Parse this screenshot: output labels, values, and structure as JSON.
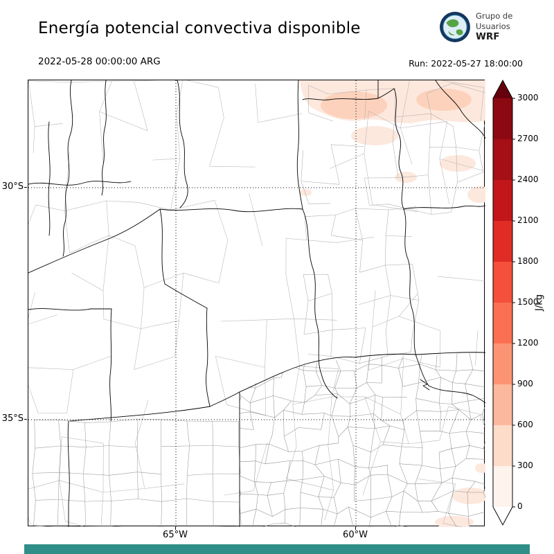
{
  "header": {
    "title": "Energía potencial convectiva disponible",
    "logo": {
      "line1": "Grupo de",
      "line2": "Usuarios",
      "line3": "WRF"
    }
  },
  "subheader": {
    "valid_time": "2022-05-28 00:00:00 ARG",
    "run_time": "Run: 2022-05-27 18:00:00"
  },
  "map": {
    "y_tick_labels": [
      "30°S",
      "35°S"
    ],
    "x_tick_labels": [
      "65°W",
      "60°W"
    ],
    "boundary_color": "#000000",
    "department_line_color": "#9a9a9a",
    "cape_fill_light": "#fde8dd",
    "cape_fill_mid": "#fcd2bc"
  },
  "colorbar": {
    "unit": "J/kg",
    "tick_labels": [
      "3000",
      "2700",
      "2400",
      "2100",
      "1800",
      "1500",
      "1200",
      "900",
      "600",
      "300",
      "0"
    ],
    "segment_colors_top_to_bottom": [
      "#8c0912",
      "#a50f15",
      "#c2161b",
      "#e02c25",
      "#f4503a",
      "#fb7050",
      "#fc9474",
      "#fcb89d",
      "#fddcc9",
      "#fff3ed"
    ],
    "arrow_top_color": "#67000d",
    "arrow_bottom_color": "#ffffff"
  },
  "footer": {
    "bar_color": "#2f8e87"
  },
  "chart_data": {
    "type": "heatmap",
    "title": "Energía potencial convectiva disponible",
    "unit": "J/kg",
    "valid_time": "2022-05-28 00:00:00 ARG",
    "run": "Run: 2022-05-27 18:00:00",
    "colorbar_levels": [
      0,
      300,
      600,
      900,
      1200,
      1500,
      1800,
      2100,
      2400,
      2700,
      3000
    ],
    "x_axis_ticks": [
      "65°W",
      "60°W"
    ],
    "y_axis_ticks": [
      "30°S",
      "35°S"
    ],
    "depicted_values": "CAPE mostly 0 over the domain; light shading of roughly 0-600 J/kg over the northeast (top-right) sector and small patches in the far southeast corner"
  }
}
